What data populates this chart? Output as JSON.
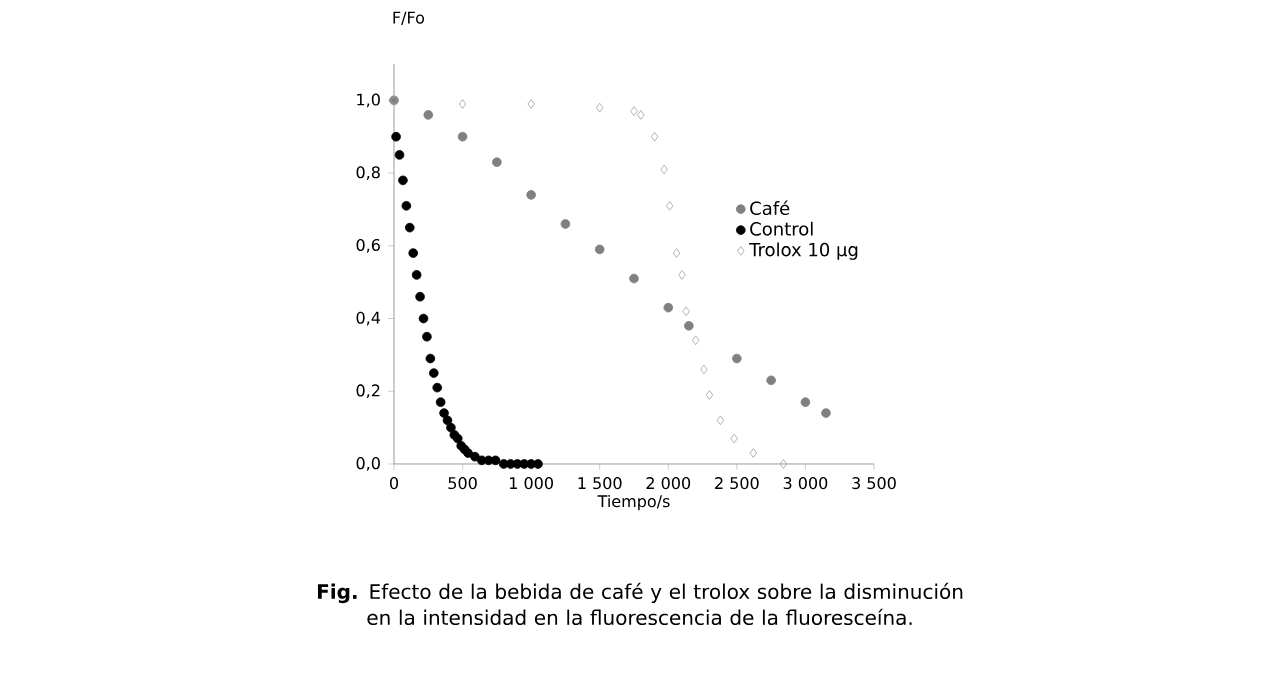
{
  "chart_data": {
    "type": "scatter",
    "xlabel": "Tiempo/s",
    "ylabel": "F/Fo",
    "annotations": [
      "**Fig.** Efecto de la bebida de café y el trolox sobre la disminución en la intensidad en la fluorescencia de la fluoresceína."
    ],
    "xlim": [
      0,
      3500
    ],
    "xticks": [
      0,
      500,
      {
        "value": 1000,
        "label": "1 000"
      },
      {
        "value": 1500,
        "label": "1 500"
      },
      {
        "value": 2000,
        "label": "2 000"
      },
      {
        "value": 2500,
        "label": "2 500"
      },
      {
        "value": 3000,
        "label": "3 000"
      },
      {
        "value": 3500,
        "label": "3 500"
      }
    ],
    "ylim": [
      0,
      1.1
    ],
    "yticks": [
      {
        "value": 0,
        "label": "0,0"
      },
      {
        "value": 0.2,
        "label": "0,2"
      },
      {
        "value": 0.4,
        "label": "0,4"
      },
      {
        "value": 0.6,
        "label": "0,6"
      },
      {
        "value": 0.8,
        "label": "0,8"
      },
      {
        "value": 1.0,
        "label": "1,0"
      }
    ],
    "legend": "right",
    "grid": false,
    "series": [
      {
        "name": "Café",
        "color": "#808080",
        "marker": "circle",
        "x": [
          0,
          250,
          500,
          750,
          1000,
          1250,
          1500,
          1750,
          2000,
          2150,
          2500,
          2750,
          3000,
          3150
        ],
        "values": [
          1.0,
          0.96,
          0.9,
          0.83,
          0.74,
          0.66,
          0.59,
          0.51,
          0.43,
          0.38,
          0.29,
          0.23,
          0.17,
          0.14
        ]
      },
      {
        "name": "Control",
        "color": "#000000",
        "marker": "circle",
        "x": [
          15,
          40,
          65,
          90,
          115,
          140,
          165,
          190,
          215,
          240,
          265,
          290,
          315,
          340,
          365,
          390,
          415,
          440,
          465,
          490,
          515,
          540,
          590,
          640,
          690,
          740,
          800,
          850,
          900,
          950,
          1000,
          1050
        ],
        "values": [
          0.9,
          0.85,
          0.78,
          0.71,
          0.65,
          0.58,
          0.52,
          0.46,
          0.4,
          0.35,
          0.29,
          0.25,
          0.21,
          0.17,
          0.14,
          0.12,
          0.1,
          0.08,
          0.07,
          0.05,
          0.04,
          0.03,
          0.02,
          0.01,
          0.01,
          0.01,
          0.0,
          0.0,
          0.0,
          0.0,
          0.0,
          0.0
        ]
      },
      {
        "name": "Trolox 10 µg",
        "color": "#a0a0a0",
        "marker": "diamond",
        "x": [
          0,
          500,
          1000,
          1500,
          1750,
          1800,
          1900,
          1970,
          2010,
          2060,
          2100,
          2130,
          2200,
          2260,
          2300,
          2380,
          2480,
          2620,
          2840
        ],
        "values": [
          1.0,
          0.99,
          0.99,
          0.98,
          0.97,
          0.96,
          0.9,
          0.81,
          0.71,
          0.58,
          0.52,
          0.42,
          0.34,
          0.26,
          0.19,
          0.12,
          0.07,
          0.03,
          0.0
        ]
      }
    ]
  }
}
